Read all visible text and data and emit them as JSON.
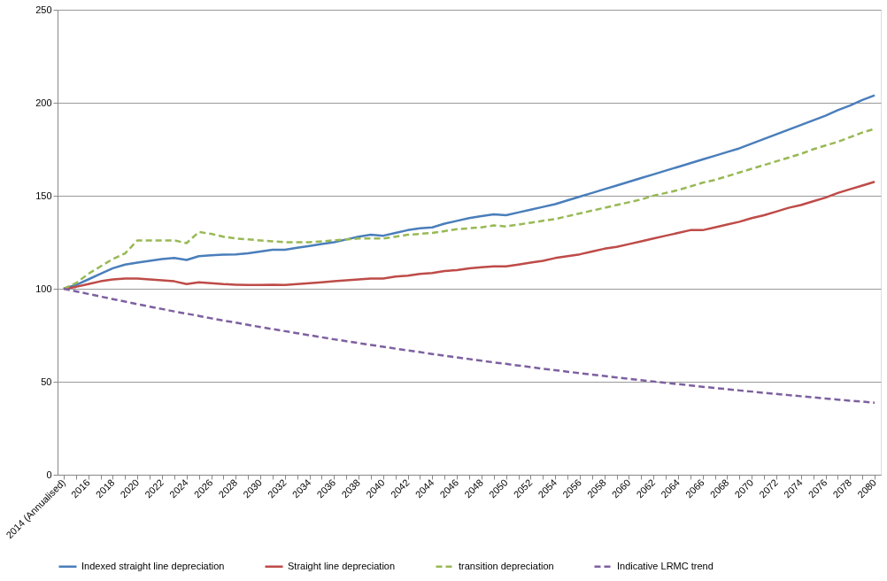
{
  "chart_data": {
    "type": "line",
    "categories": [
      "2014 (Annualised)",
      null,
      "2016",
      null,
      "2018",
      null,
      "2020",
      null,
      "2022",
      null,
      "2024",
      null,
      "2026",
      null,
      "2028",
      null,
      "2030",
      null,
      "2032",
      null,
      "2034",
      null,
      "2036",
      null,
      "2038",
      null,
      "2040",
      null,
      "2042",
      null,
      "2044",
      null,
      "2046",
      null,
      "2048",
      null,
      "2050",
      null,
      "2052",
      null,
      "2054",
      null,
      "2056",
      null,
      "2058",
      null,
      "2060",
      null,
      "2062",
      null,
      "2064",
      null,
      "2066",
      null,
      "2068",
      null,
      "2070",
      null,
      "2072",
      null,
      "2074",
      null,
      "2076",
      null,
      "2078",
      null,
      "2080"
    ],
    "series": [
      {
        "name": "Indexed straight line depreciation",
        "color": "#4a7ebb",
        "line_style": "solid",
        "values": [
          100,
          102,
          105,
          108,
          111,
          113,
          114,
          115,
          116,
          116.5,
          115.5,
          117.5,
          118,
          118.3,
          118.5,
          119,
          120,
          121,
          121,
          122,
          123,
          124,
          125,
          126.5,
          128,
          129,
          128.5,
          130,
          131.5,
          132.5,
          133,
          135,
          136.5,
          138,
          139,
          140,
          139.5,
          141,
          142.5,
          144,
          145.5,
          147.5,
          149.5,
          151.5,
          153.5,
          155.5,
          157.5,
          159.5,
          161.5,
          163.5,
          165.5,
          167.5,
          169.5,
          171.5,
          173.5,
          175.5,
          178,
          180.5,
          183,
          185.5,
          188,
          190.5,
          193,
          196,
          198.5,
          201.5,
          204
        ]
      },
      {
        "name": "Straight line depreciation",
        "color": "#be4b48",
        "line_style": "solid",
        "values": [
          100,
          101,
          102.5,
          104,
          105,
          105.5,
          105.5,
          105,
          104.5,
          104,
          102.5,
          103.5,
          103,
          102.5,
          102.2,
          102,
          102,
          102.2,
          102,
          102.5,
          103,
          103.5,
          104,
          104.5,
          105,
          105.5,
          105.5,
          106.5,
          107,
          108,
          108.5,
          109.5,
          110,
          111,
          111.5,
          112,
          112,
          113,
          114,
          115,
          116.5,
          117.5,
          118.5,
          120,
          121.5,
          122.5,
          124,
          125.5,
          127,
          128.5,
          130,
          131.5,
          131.5,
          133,
          134.5,
          136,
          138,
          139.5,
          141.5,
          143.5,
          145,
          147,
          149,
          151.5,
          153.5,
          155.5,
          157.5
        ]
      },
      {
        "name": "transition depreciation",
        "color": "#98b954",
        "line_style": "dashed",
        "values": [
          100,
          103,
          108,
          112,
          116,
          119,
          126,
          126,
          126,
          126,
          124.5,
          130.5,
          129.5,
          128,
          127,
          126.5,
          126,
          125.5,
          125,
          125,
          125,
          125.5,
          126,
          126.5,
          127,
          127,
          127,
          128,
          129,
          129.5,
          130,
          131,
          132,
          132.5,
          133,
          134,
          133.5,
          134.5,
          135.5,
          136.5,
          137.5,
          139,
          140.5,
          142,
          143.5,
          145,
          146.5,
          148,
          150,
          151.5,
          153,
          155,
          157,
          158.5,
          160.5,
          162.5,
          164.5,
          166.5,
          168.5,
          170.5,
          172.5,
          175,
          177,
          179,
          181.5,
          184,
          186
        ]
      },
      {
        "name": "Indicative LRMC trend",
        "color": "#7d60a0",
        "line_style": "dashed",
        "values": [
          100,
          98.6,
          97.2,
          95.8,
          94.4,
          93.1,
          91.7,
          90.4,
          89.1,
          87.8,
          86.6,
          85.4,
          84.1,
          82.9,
          81.8,
          80.6,
          79.4,
          78.3,
          77.2,
          76.1,
          75.0,
          73.9,
          72.8,
          71.8,
          70.8,
          69.8,
          68.8,
          67.8,
          66.8,
          65.9,
          64.9,
          64.0,
          63.1,
          62.2,
          61.3,
          60.4,
          59.6,
          58.7,
          57.9,
          57.0,
          56.2,
          55.4,
          54.6,
          53.8,
          53.1,
          52.3,
          51.6,
          50.8,
          50.1,
          49.4,
          48.7,
          48.0,
          47.3,
          46.6,
          46.0,
          45.3,
          44.7,
          44.0,
          43.4,
          42.8,
          42.2,
          41.6,
          41.0,
          40.4,
          39.8,
          39.3,
          38.7
        ]
      }
    ],
    "ylim": [
      0,
      250
    ],
    "yticks": [
      0,
      50,
      100,
      150,
      200,
      250
    ],
    "grid": "y",
    "legend": "bottom",
    "marker": "none"
  }
}
